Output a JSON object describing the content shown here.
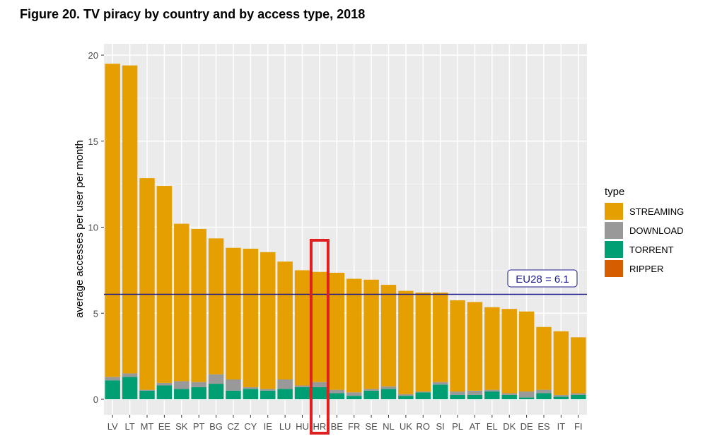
{
  "figure": {
    "title": "Figure 20. TV piracy by country and by access type, 2018"
  },
  "chart_data": {
    "type": "bar",
    "stacked": true,
    "title": "Figure 20. TV piracy by country and by access type, 2018",
    "xlabel": "",
    "ylabel": "average accesses per user per month",
    "ylim": [
      0,
      20.5
    ],
    "yticks": [
      "0",
      "5",
      "10",
      "15",
      "20"
    ],
    "grid": true,
    "legend_position": "right",
    "legend_title": "type",
    "categories": [
      "LV",
      "LT",
      "MT",
      "EE",
      "SK",
      "PT",
      "BG",
      "CZ",
      "CY",
      "IE",
      "LU",
      "HU",
      "HR",
      "BE",
      "FR",
      "SE",
      "NL",
      "UK",
      "RO",
      "SI",
      "PL",
      "AT",
      "EL",
      "DK",
      "DE",
      "ES",
      "IT",
      "FI"
    ],
    "series": [
      {
        "name": "TORRENT",
        "color": "#009E73",
        "values": [
          1.1,
          1.3,
          0.5,
          0.8,
          0.6,
          0.7,
          0.9,
          0.5,
          0.6,
          0.5,
          0.6,
          0.7,
          0.7,
          0.35,
          0.2,
          0.5,
          0.6,
          0.2,
          0.4,
          0.85,
          0.25,
          0.25,
          0.45,
          0.25,
          0.1,
          0.35,
          0.15,
          0.25
        ]
      },
      {
        "name": "DOWNLOAD",
        "color": "#999999",
        "values": [
          0.2,
          0.2,
          0.05,
          0.15,
          0.45,
          0.3,
          0.55,
          0.65,
          0.1,
          0.1,
          0.55,
          0.1,
          0.3,
          0.2,
          0.2,
          0.1,
          0.15,
          0.1,
          0.05,
          0.15,
          0.2,
          0.25,
          0.1,
          0.1,
          0.35,
          0.2,
          0.1,
          0.1
        ]
      },
      {
        "name": "RIPPER",
        "color": "#D55E00",
        "values": [
          0,
          0,
          0,
          0,
          0,
          0,
          0,
          0,
          0,
          0,
          0,
          0,
          0,
          0,
          0,
          0,
          0,
          0,
          0,
          0,
          0,
          0,
          0,
          0,
          0,
          0,
          0,
          0
        ]
      },
      {
        "name": "STREAMING",
        "color": "#E69F00",
        "values": [
          18.2,
          17.9,
          12.3,
          11.45,
          9.15,
          8.9,
          7.9,
          7.65,
          8.05,
          7.95,
          6.85,
          6.7,
          6.4,
          6.8,
          6.6,
          6.35,
          5.9,
          6.0,
          5.75,
          5.2,
          5.3,
          5.15,
          4.8,
          4.9,
          4.65,
          3.65,
          3.7,
          3.25
        ]
      }
    ],
    "legend_order": [
      "STREAMING",
      "DOWNLOAD",
      "TORRENT",
      "RIPPER"
    ],
    "reference_line": {
      "value": 6.1,
      "label": "EU28 = 6.1",
      "color": "#1a1a8c"
    },
    "highlight": {
      "category": "HR",
      "color": "#e02020"
    }
  }
}
